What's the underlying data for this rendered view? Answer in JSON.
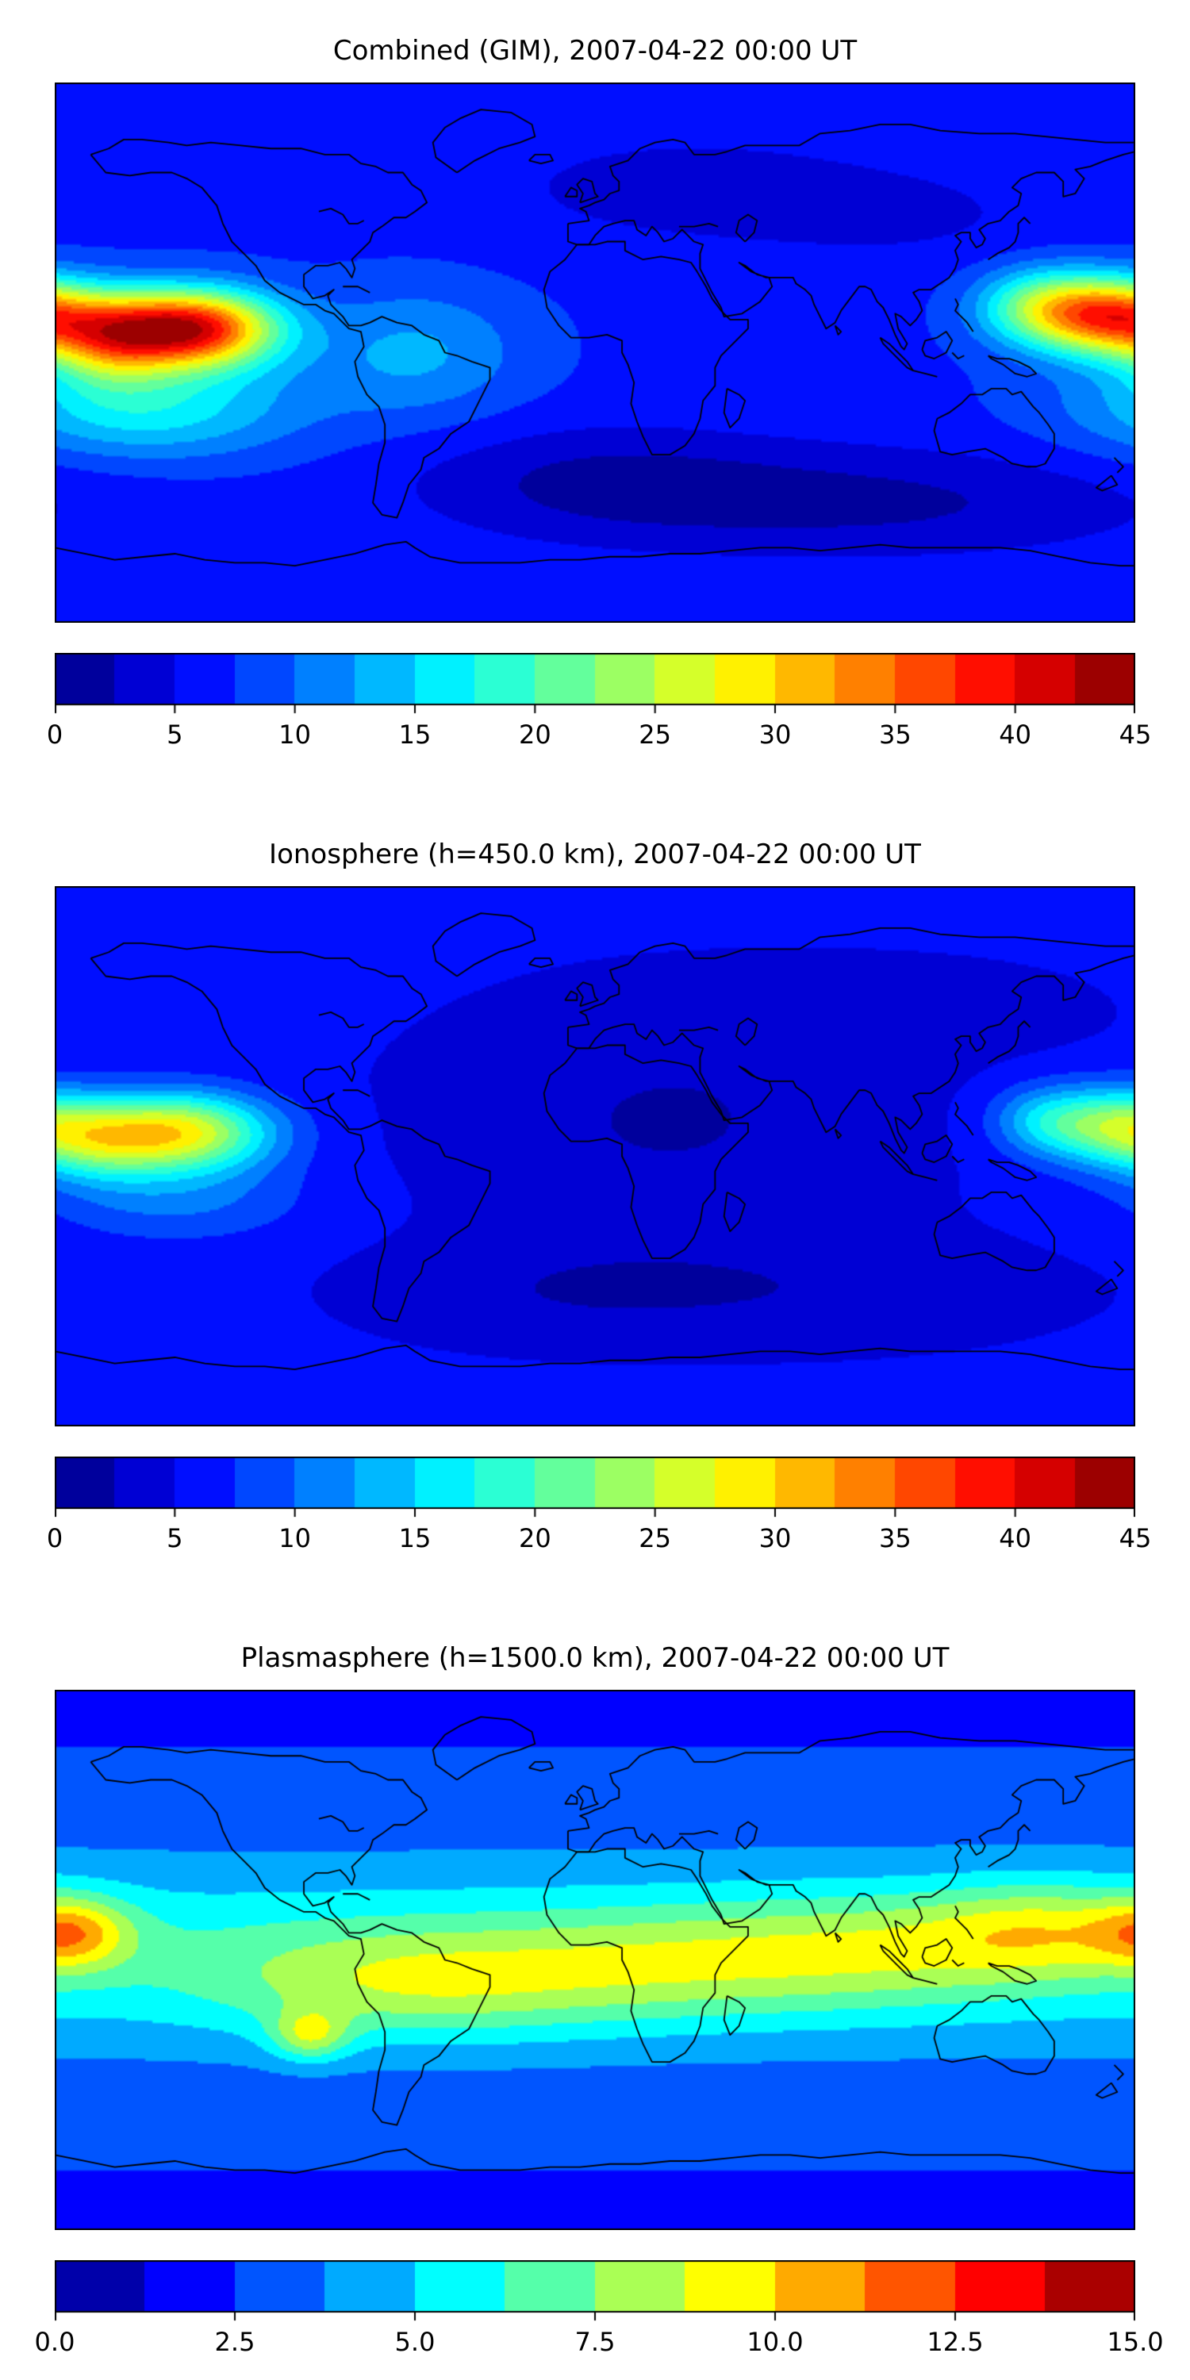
{
  "page": {
    "background": "#ffffff"
  },
  "basemap": {
    "stroke": "#000000",
    "coastlines": [
      [
        -168,
        66,
        -163,
        60,
        -155,
        59,
        -148,
        60,
        -141,
        60,
        -136,
        58,
        -131,
        55,
        -126,
        49,
        -124,
        43,
        -121,
        37,
        -117,
        33,
        -113,
        29,
        -110,
        24,
        -105,
        20,
        -97,
        16,
        -93,
        16,
        -90,
        14,
        -87,
        13,
        -84,
        10,
        -82,
        8,
        -78,
        7,
        -77,
        2,
        -80,
        -3,
        -79,
        -8,
        -76,
        -14,
        -72,
        -18,
        -70,
        -24,
        -70,
        -30,
        -72,
        -37,
        -73,
        -44,
        -74,
        -50,
        -71,
        -54,
        -66,
        -55,
        -64,
        -50,
        -62,
        -44,
        -58,
        -39,
        -57,
        -35,
        -52,
        -32,
        -48,
        -27,
        -42,
        -23,
        -39,
        -17,
        -35,
        -9,
        -35,
        -5,
        -41,
        -3,
        -46,
        -1,
        -50,
        0,
        -52,
        4,
        -57,
        6,
        -61,
        9,
        -66,
        10,
        -71,
        12,
        -75,
        10,
        -78,
        9,
        -82,
        9,
        -84,
        12,
        -86,
        14,
        -88,
        16,
        -89,
        19,
        -87,
        21,
        -90,
        19,
        -94,
        18,
        -97,
        22,
        -97,
        26,
        -93,
        29,
        -89,
        29,
        -85,
        30,
        -83,
        28,
        -81,
        25,
        -80,
        28,
        -81,
        31,
        -78,
        34,
        -75,
        37,
        -74,
        40,
        -71,
        42,
        -67,
        45,
        -63,
        45,
        -60,
        47,
        -56,
        50,
        -58,
        54,
        -61,
        56,
        -64,
        60,
        -69,
        60,
        -73,
        62,
        -78,
        63,
        -82,
        66,
        -90,
        66,
        -98,
        68,
        -108,
        68,
        -118,
        69,
        -128,
        70,
        -136,
        69,
        -142,
        70,
        -151,
        71,
        -157,
        71,
        -162,
        68,
        -168,
        66
      ],
      [
        -46,
        60,
        -53,
        65,
        -54,
        70,
        -50,
        75,
        -45,
        78,
        -38,
        81,
        -28,
        80,
        -21,
        76,
        -20,
        72,
        -25,
        70,
        -32,
        68,
        -40,
        64,
        -46,
        60
      ],
      [
        -6,
        36,
        -10,
        31,
        -15,
        27,
        -17,
        21,
        -16,
        15,
        -12,
        9,
        -8,
        5,
        -2,
        5,
        4,
        6,
        9,
        4,
        9,
        0,
        11,
        -4,
        13,
        -10,
        12,
        -17,
        14,
        -23,
        16,
        -28,
        19,
        -34,
        25,
        -34,
        30,
        -31,
        33,
        -27,
        35,
        -22,
        36,
        -16,
        40,
        -11,
        40,
        -5,
        42,
        -1,
        46,
        3,
        51,
        8,
        51,
        11,
        45,
        11,
        42,
        14,
        39,
        18,
        37,
        22,
        34,
        27,
        32,
        30,
        28,
        31,
        22,
        32,
        16,
        31,
        10,
        34,
        10,
        37,
        4,
        37,
        0,
        36,
        -6,
        36
      ],
      [
        -9,
        43,
        -9,
        37,
        -6,
        36,
        -2,
        36,
        0,
        39,
        3,
        42,
        6,
        43,
        10,
        44,
        13,
        44,
        14,
        41,
        17,
        39,
        19,
        42,
        21,
        40,
        23,
        37,
        26,
        38,
        29,
        41,
        33,
        37,
        36,
        36,
        35,
        33,
        35,
        28,
        37,
        24,
        39,
        20,
        42,
        15,
        43,
        12,
        49,
        13,
        55,
        17,
        59,
        22,
        58,
        25,
        54,
        26,
        50,
        29,
        48,
        30,
        52,
        27,
        57,
        25,
        61,
        25,
        66,
        25,
        67,
        23,
        70,
        21,
        72,
        19,
        73,
        16,
        75,
        12,
        77,
        8,
        80,
        10,
        82,
        14,
        85,
        18,
        88,
        22,
        90,
        22,
        92,
        21,
        94,
        17,
        96,
        15,
        98,
        11,
        100,
        6,
        102,
        2,
        103,
        1,
        104,
        3,
        101,
        8,
        100,
        13,
        102,
        12,
        105,
        9,
        107,
        11,
        109,
        14,
        108,
        17,
        106,
        20,
        108,
        21,
        112,
        21,
        115,
        23,
        118,
        25,
        120,
        28,
        121,
        31,
        120,
        34,
        122,
        37,
        120,
        39,
        122,
        40,
        125,
        40,
        125,
        38,
        127,
        35,
        129,
        36,
        130,
        38,
        128,
        41,
        131,
        43,
        135,
        44,
        138,
        47,
        141,
        49,
        142,
        53,
        139,
        55,
        142,
        58,
        147,
        60,
        153,
        60,
        156,
        57,
        156,
        52,
        160,
        53,
        163,
        58,
        160,
        61,
        165,
        62,
        170,
        64,
        176,
        66,
        180,
        67,
        180,
        70,
        170,
        70,
        160,
        71,
        150,
        72,
        140,
        73,
        128,
        73,
        115,
        74,
        105,
        76,
        95,
        76,
        85,
        74,
        75,
        73,
        68,
        69,
        60,
        69,
        50,
        69,
        44,
        67,
        40,
        66,
        33,
        66,
        30,
        70,
        26,
        71,
        20,
        70,
        15,
        68,
        11,
        64,
        5,
        62,
        6,
        59,
        8,
        57,
        8,
        54,
        5,
        53,
        3,
        51,
        0,
        50,
        -2,
        49,
        -5,
        48,
        -3,
        47,
        -2,
        44,
        -9,
        43
      ],
      [
        50,
        37,
        53,
        40,
        54,
        44,
        51,
        46,
        48,
        44,
        47,
        40,
        50,
        37
      ],
      [
        28,
        42,
        33,
        42,
        38,
        43,
        41,
        42
      ],
      [
        -5,
        50,
        -4,
        53,
        -6,
        56,
        -4,
        58,
        -1,
        57,
        0,
        53,
        1,
        52,
        -5,
        50
      ],
      [
        -10,
        52,
        -8,
        55,
        -6,
        54,
        -6,
        52,
        -10,
        52
      ],
      [
        -22,
        64,
        -18,
        63,
        -14,
        64,
        -15,
        66,
        -20,
        66,
        -22,
        64
      ],
      [
        131,
        31,
        134,
        33,
        136,
        34,
        138,
        35,
        140,
        37,
        141,
        40,
        141,
        43,
        143,
        45,
        145,
        43
      ],
      [
        120,
        18,
        121,
        16,
        120,
        14,
        122,
        12,
        124,
        10,
        126,
        7
      ],
      [
        109,
        1,
        110,
        4,
        114,
        5,
        117,
        7,
        119,
        4,
        117,
        0,
        113,
        -2,
        110,
        -1,
        109,
        1
      ],
      [
        95,
        5,
        98,
        3,
        101,
        0,
        104,
        -3,
        106,
        -6,
        104,
        -5,
        100,
        -1,
        96,
        3,
        95,
        5
      ],
      [
        106,
        -6,
        110,
        -7,
        114,
        -8
      ],
      [
        119,
        0,
        121,
        -2,
        123,
        -1
      ],
      [
        131,
        -1,
        134,
        -2,
        138,
        -2,
        141,
        -3,
        145,
        -5,
        147,
        -7,
        144,
        -8,
        140,
        -7,
        136,
        -4,
        132,
        -2,
        131,
        -1
      ],
      [
        114,
        -22,
        113,
        -26,
        115,
        -33,
        119,
        -34,
        124,
        -33,
        130,
        -32,
        136,
        -35,
        139,
        -37,
        144,
        -38,
        147,
        -38,
        150,
        -37,
        153,
        -32,
        153,
        -27,
        151,
        -24,
        148,
        -20,
        146,
        -18,
        142,
        -13,
        139,
        -14,
        137,
        -12,
        132,
        -12,
        129,
        -14,
        125,
        -14,
        122,
        -17,
        118,
        -20,
        114,
        -22
      ],
      [
        173,
        -35,
        176,
        -38,
        174,
        -40
      ],
      [
        172,
        -41,
        174,
        -44,
        169,
        -46,
        167,
        -45,
        172,
        -41
      ],
      [
        44,
        -12,
        48,
        -14,
        50,
        -16,
        48,
        -22,
        45,
        -25,
        43,
        -20,
        44,
        -12
      ],
      [
        80,
        9,
        82,
        7,
        81,
        6,
        80,
        9
      ],
      [
        -84,
        22,
        -79,
        22,
        -75,
        20
      ],
      [
        -92,
        47,
        -88,
        48,
        -84,
        46,
        -82,
        43,
        -79,
        43,
        -77,
        44
      ],
      [
        -180,
        -65,
        -170,
        -67,
        -160,
        -69,
        -150,
        -68,
        -140,
        -67,
        -130,
        -69,
        -120,
        -70,
        -110,
        -70,
        -100,
        -71,
        -90,
        -69,
        -80,
        -67,
        -70,
        -64,
        -63,
        -63,
        -60,
        -65,
        -55,
        -68,
        -45,
        -70,
        -35,
        -70,
        -25,
        -70,
        -15,
        -69,
        -5,
        -69,
        5,
        -68,
        15,
        -68,
        25,
        -67,
        35,
        -67,
        45,
        -66,
        55,
        -65,
        65,
        -65,
        75,
        -66,
        85,
        -65,
        95,
        -64,
        105,
        -65,
        115,
        -65,
        125,
        -65,
        135,
        -65,
        145,
        -66,
        155,
        -68,
        165,
        -70,
        175,
        -71,
        180,
        -71
      ]
    ]
  },
  "chart_data": [
    {
      "type": "contour-map",
      "title": "Combined (GIM), 2007-04-22 00:00 UT",
      "colormap": "jet",
      "projection": "equirectangular",
      "lon_range": [
        -180,
        180
      ],
      "lat_range": [
        -90,
        90
      ],
      "levels": {
        "min": 0,
        "max": 45,
        "step": 2.5
      },
      "colorbar": {
        "tick_labels": [
          "0",
          "5",
          "10",
          "15",
          "20",
          "25",
          "30",
          "35",
          "40",
          "45"
        ],
        "tick_values": [
          0,
          5,
          10,
          15,
          20,
          25,
          30,
          35,
          40,
          45
        ]
      },
      "field": {
        "base": 7,
        "blobs": [
          [
            -135,
            8,
            34,
            20,
            9
          ],
          [
            -162,
            5,
            16,
            14,
            10
          ],
          [
            172,
            12,
            26,
            16,
            9
          ],
          [
            148,
            15,
            14,
            15,
            9
          ],
          [
            -150,
            -18,
            10,
            35,
            12
          ],
          [
            -60,
            0,
            6,
            25,
            15
          ],
          [
            90,
            -50,
            -5,
            70,
            13
          ],
          [
            0,
            -42,
            -4,
            45,
            13
          ],
          [
            30,
            55,
            -3,
            50,
            14
          ],
          [
            105,
            45,
            -2,
            40,
            12
          ]
        ]
      }
    },
    {
      "type": "contour-map",
      "title": "Ionosphere  (h=450.0 km), 2007-04-22 00:00 UT",
      "colormap": "jet",
      "projection": "equirectangular",
      "lon_range": [
        -180,
        180
      ],
      "lat_range": [
        -90,
        90
      ],
      "levels": {
        "min": 0,
        "max": 45,
        "step": 2.5
      },
      "colorbar": {
        "tick_labels": [
          "0",
          "5",
          "10",
          "15",
          "20",
          "25",
          "30",
          "35",
          "40",
          "45"
        ],
        "tick_values": [
          0,
          5,
          10,
          15,
          20,
          25,
          30,
          35,
          40,
          45
        ]
      },
      "field": {
        "base": 5.5,
        "blobs": [
          [
            -140,
            8,
            23,
            22,
            9
          ],
          [
            -165,
            4,
            8,
            14,
            9
          ],
          [
            172,
            10,
            16,
            16,
            9
          ],
          [
            148,
            12,
            7,
            12,
            8
          ],
          [
            -140,
            -14,
            5,
            30,
            10
          ],
          [
            25,
            12,
            -3.2,
            55,
            28
          ],
          [
            70,
            -45,
            -2.2,
            60,
            13
          ],
          [
            -15,
            -45,
            -2,
            45,
            12
          ],
          [
            105,
            48,
            -1.5,
            45,
            12
          ]
        ]
      }
    },
    {
      "type": "contour-map",
      "title": "Plasmasphere (h=1500.0 km), 2007-04-22 00:00 UT",
      "colormap": "jet",
      "projection": "equirectangular",
      "lon_range": [
        -180,
        180
      ],
      "lat_range": [
        -90,
        90
      ],
      "levels": {
        "min": 0,
        "max": 15,
        "step": 1.25
      },
      "colorbar": {
        "tick_labels": [
          "0.0",
          "2.5",
          "5.0",
          "7.5",
          "10.0",
          "12.5",
          "15.0"
        ],
        "tick_values": [
          0,
          2.5,
          5,
          7.5,
          10,
          12.5,
          15
        ]
      },
      "field": {
        "base": 2.8,
        "blobs": [
          [
            0,
            2,
            3.2,
            100000,
            22
          ],
          [
            -60,
            -8,
            3.2,
            45,
            13
          ],
          [
            20,
            -2,
            2.2,
            40,
            13
          ],
          [
            90,
            3,
            2.6,
            40,
            13
          ],
          [
            150,
            10,
            3.4,
            28,
            11
          ],
          [
            -174,
            9,
            4.2,
            13,
            8
          ],
          [
            -95,
            -25,
            4,
            9,
            6
          ],
          [
            0,
            84,
            -0.8,
            100000,
            10
          ],
          [
            0,
            -84,
            -0.8,
            100000,
            10
          ]
        ]
      }
    }
  ]
}
